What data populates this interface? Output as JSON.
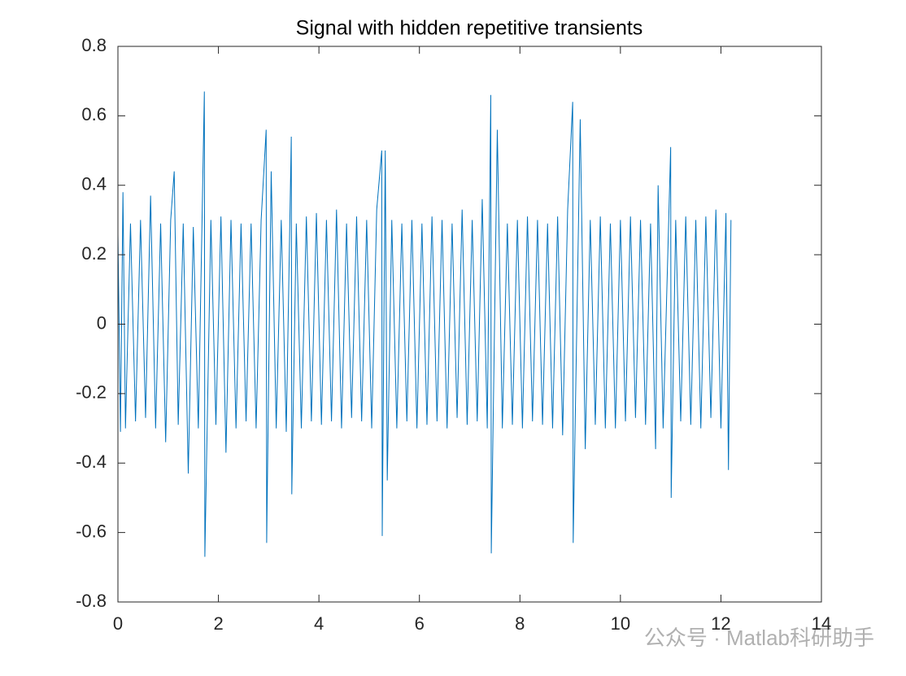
{
  "chart_data": {
    "type": "line",
    "title": "Signal with hidden repetitive transients",
    "x": [
      0,
      0.05,
      0.1,
      0.15,
      0.25,
      0.35,
      0.45,
      0.55,
      0.65,
      0.75,
      0.85,
      0.95,
      1.05,
      1.12,
      1.2,
      1.3,
      1.4,
      1.5,
      1.6,
      1.72,
      1.73,
      1.85,
      1.95,
      2.05,
      2.15,
      2.25,
      2.35,
      2.45,
      2.55,
      2.65,
      2.75,
      2.85,
      2.95,
      2.96,
      3.05,
      3.15,
      3.25,
      3.35,
      3.45,
      3.46,
      3.55,
      3.65,
      3.75,
      3.85,
      3.95,
      4.05,
      4.15,
      4.25,
      4.35,
      4.45,
      4.55,
      4.65,
      4.75,
      4.85,
      4.95,
      5.05,
      5.15,
      5.25,
      5.26,
      5.32,
      5.36,
      5.45,
      5.55,
      5.65,
      5.75,
      5.85,
      5.95,
      6.05,
      6.15,
      6.25,
      6.35,
      6.45,
      6.55,
      6.65,
      6.75,
      6.85,
      6.95,
      7.05,
      7.15,
      7.25,
      7.35,
      7.42,
      7.43,
      7.55,
      7.65,
      7.75,
      7.85,
      7.95,
      8.05,
      8.15,
      8.25,
      8.35,
      8.45,
      8.55,
      8.65,
      8.75,
      8.85,
      8.95,
      9.05,
      9.06,
      9.2,
      9.3,
      9.4,
      9.5,
      9.6,
      9.7,
      9.8,
      9.9,
      10,
      10.1,
      10.2,
      10.3,
      10.4,
      10.5,
      10.6,
      10.7,
      10.75,
      10.85,
      11,
      11.01,
      11.1,
      11.2,
      11.3,
      11.4,
      11.5,
      11.6,
      11.7,
      11.8,
      11.9,
      12,
      12.1,
      12.15,
      12.2
    ],
    "series": [
      {
        "color": "#0072bd",
        "values": [
          0.26,
          -0.31,
          0.38,
          -0.3,
          0.29,
          -0.28,
          0.3,
          -0.27,
          0.37,
          -0.3,
          0.29,
          -0.34,
          0.3,
          0.44,
          -0.29,
          0.29,
          -0.43,
          0.28,
          -0.3,
          0.67,
          -0.67,
          0.3,
          -0.29,
          0.31,
          -0.37,
          0.3,
          -0.3,
          0.29,
          -0.28,
          0.29,
          -0.3,
          0.3,
          0.56,
          -0.63,
          0.44,
          -0.3,
          0.3,
          -0.31,
          0.54,
          -0.49,
          0.29,
          -0.3,
          0.31,
          -0.28,
          0.32,
          -0.29,
          0.3,
          -0.28,
          0.33,
          -0.3,
          0.29,
          -0.27,
          0.31,
          -0.28,
          0.3,
          -0.3,
          0.33,
          0.5,
          -0.61,
          0.5,
          -0.45,
          0.3,
          -0.3,
          0.29,
          -0.28,
          0.3,
          -0.3,
          0.29,
          -0.29,
          0.31,
          -0.28,
          0.3,
          -0.3,
          0.29,
          -0.27,
          0.33,
          -0.29,
          0.3,
          -0.28,
          0.36,
          -0.3,
          0.66,
          -0.66,
          0.56,
          -0.3,
          0.29,
          -0.29,
          0.3,
          -0.3,
          0.31,
          -0.28,
          0.3,
          -0.29,
          0.29,
          -0.3,
          0.31,
          -0.32,
          0.33,
          0.64,
          -0.63,
          0.59,
          -0.36,
          0.3,
          -0.29,
          0.31,
          -0.3,
          0.29,
          -0.3,
          0.3,
          -0.28,
          0.31,
          -0.27,
          0.3,
          -0.29,
          0.29,
          -0.36,
          0.4,
          -0.3,
          0.51,
          -0.5,
          0.3,
          -0.28,
          0.31,
          -0.29,
          0.3,
          -0.3,
          0.31,
          -0.27,
          0.33,
          -0.3,
          0.32,
          -0.42,
          0.3
        ]
      }
    ],
    "xlim": [
      0,
      14
    ],
    "xticks": [
      0,
      2,
      4,
      6,
      8,
      10,
      12,
      14
    ],
    "ylim": [
      -0.8,
      0.8
    ],
    "yticks": [
      -0.8,
      -0.6,
      -0.4,
      -0.2,
      0,
      0.2,
      0.4,
      0.6,
      0.8
    ],
    "grid": false
  },
  "watermark": "公众号 · Matlab科研助手"
}
